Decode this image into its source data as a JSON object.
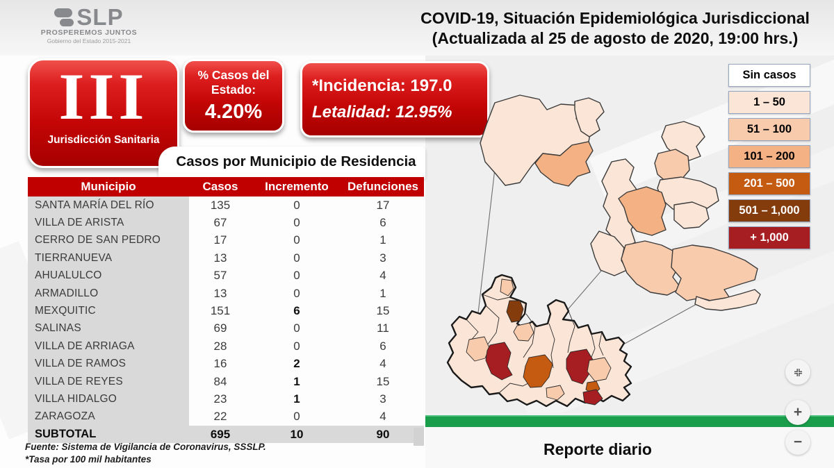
{
  "header": {
    "logo": {
      "name": "SLP",
      "tagline": "PROSPEREMOS JUNTOS",
      "subline": "Gobierno del Estado 2015-2021"
    },
    "title_line1": "COVID-19, Situación Epidemiológica Jurisdiccional",
    "title_line2": "(Actualizada al 25 de agosto de 2020, 19:00 hrs.)"
  },
  "badge": {
    "numeral": "III",
    "label": "Jurisdicción Sanitaria"
  },
  "stats": {
    "pct_title": "% Casos del Estado:",
    "pct_value": "4.20%",
    "incidencia": "*Incidencia: 197.0",
    "letalidad": "Letalidad: 12.95%"
  },
  "table": {
    "title": "Casos por Municipio de Residencia",
    "headers": [
      "Municipio",
      "Casos",
      "Incremento",
      "Defunciones"
    ],
    "rows": [
      {
        "municipio": "SANTA MARÍA DEL RÍO",
        "casos": "135",
        "incremento": "0",
        "defunciones": "17"
      },
      {
        "municipio": "VILLA DE ARISTA",
        "casos": "67",
        "incremento": "0",
        "defunciones": "6"
      },
      {
        "municipio": "CERRO DE SAN PEDRO",
        "casos": "17",
        "incremento": "0",
        "defunciones": "1"
      },
      {
        "municipio": "TIERRANUEVA",
        "casos": "13",
        "incremento": "0",
        "defunciones": "3"
      },
      {
        "municipio": "AHUALULCO",
        "casos": "57",
        "incremento": "0",
        "defunciones": "4"
      },
      {
        "municipio": "ARMADILLO",
        "casos": "13",
        "incremento": "0",
        "defunciones": "1"
      },
      {
        "municipio": "MEXQUITIC",
        "casos": "151",
        "incremento": "6",
        "defunciones": "15"
      },
      {
        "municipio": "SALINAS",
        "casos": "69",
        "incremento": "0",
        "defunciones": "11"
      },
      {
        "municipio": "VILLA DE ARRIAGA",
        "casos": "28",
        "incremento": "0",
        "defunciones": "6"
      },
      {
        "municipio": "VILLA DE RAMOS",
        "casos": "16",
        "incremento": "2",
        "defunciones": "4"
      },
      {
        "municipio": "VILLA DE REYES",
        "casos": "84",
        "incremento": "1",
        "defunciones": "15"
      },
      {
        "municipio": "VILLA HIDALGO",
        "casos": "23",
        "incremento": "1",
        "defunciones": "3"
      },
      {
        "municipio": "ZARAGOZA",
        "casos": "22",
        "incremento": "0",
        "defunciones": "4"
      }
    ],
    "subtotal": {
      "municipio": "SUBTOTAL",
      "casos": "695",
      "incremento": "10",
      "defunciones": "90"
    },
    "footnote1": "Fuente: Sistema de Vigilancia de Coronavirus, SSSLP.",
    "footnote2": "*Tasa por 100 mil habitantes"
  },
  "legend": {
    "items": [
      {
        "label": "Sin casos",
        "color": "#ffffff",
        "text": "#000000"
      },
      {
        "label": "1 – 50",
        "color": "#fbe5d6",
        "text": "#000000"
      },
      {
        "label": "51 – 100",
        "color": "#f8cbad",
        "text": "#000000"
      },
      {
        "label": "101 – 200",
        "color": "#f4b183",
        "text": "#000000"
      },
      {
        "label": "201 – 500",
        "color": "#c55a11",
        "text": "#ffffff"
      },
      {
        "label": "501 – 1,000",
        "color": "#843c0c",
        "text": "#ffffff"
      },
      {
        "label": "+ 1,000",
        "color": "#a61d22",
        "text": "#ffffff"
      }
    ]
  },
  "palette": {
    "none": "#ffffff",
    "b1": "#fbe5d6",
    "b2": "#f8cbad",
    "b3": "#f4b183",
    "b4": "#c55a11",
    "b5": "#843c0c",
    "b6": "#a61d22"
  },
  "map": {
    "controls": {
      "zoom_in": "+",
      "zoom_out": "−"
    },
    "accent_green": "#1a9e4c"
  },
  "footer": {
    "report_label": "Reporte diario"
  }
}
